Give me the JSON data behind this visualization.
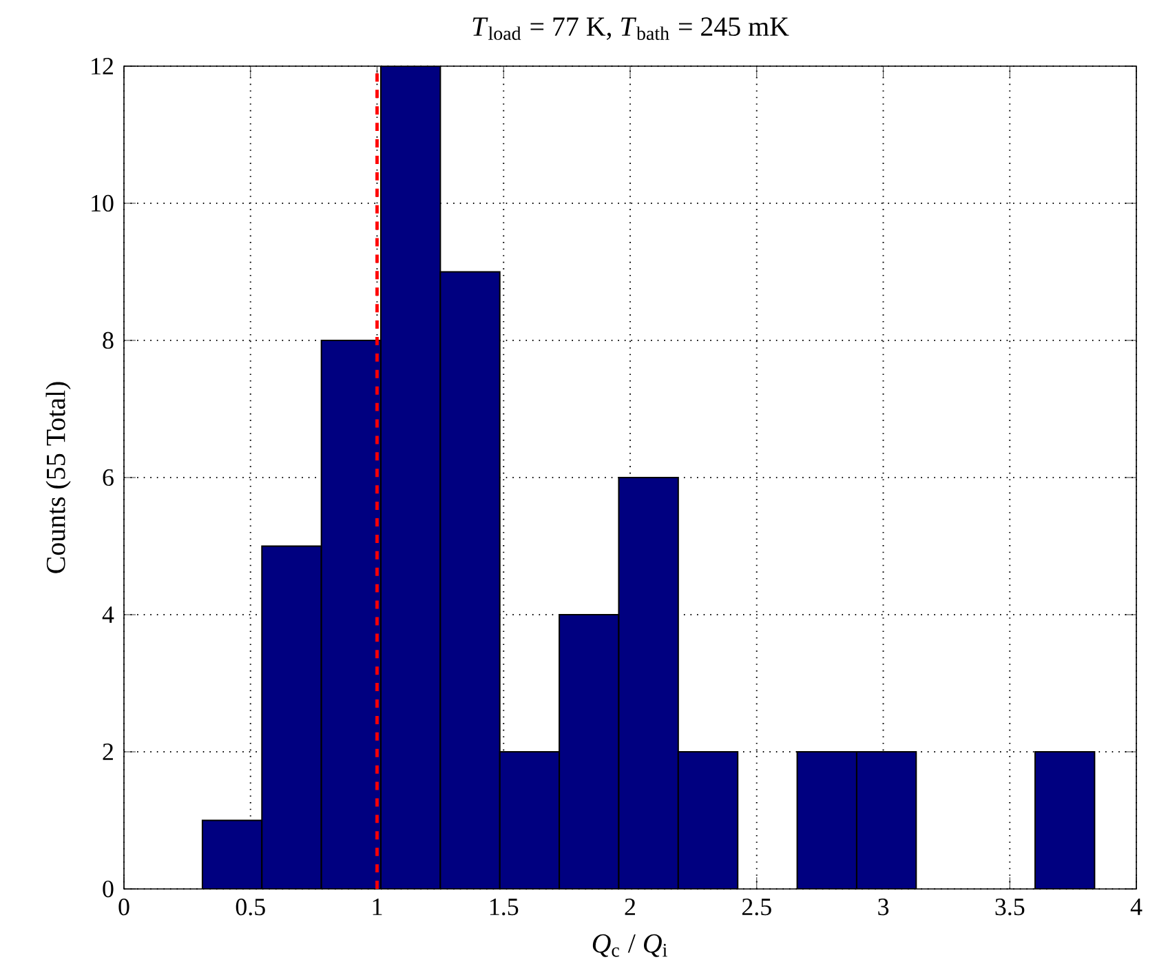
{
  "chart_data": {
    "type": "histogram",
    "title": "*T*$_{load}$ = 77 K, *T*$_{bath}$ = 245 mK",
    "xlabel": "*Q*$_{c}$ / *Q*$_{i}$",
    "ylabel": "Counts (55 Total)",
    "bins": [
      0.31,
      0.545,
      0.78,
      1.015,
      1.25,
      1.485,
      1.72,
      1.955,
      2.19,
      2.425,
      2.66,
      2.895,
      3.13,
      3.365,
      3.6,
      3.835
    ],
    "values": [
      1,
      5,
      8,
      12,
      9,
      2,
      4,
      6,
      2,
      0,
      2,
      2,
      0,
      0,
      2
    ],
    "color": "#000080",
    "xlim": [
      0,
      4
    ],
    "ylim": [
      0,
      12
    ],
    "xticks": [
      0,
      0.5,
      1,
      1.5,
      2,
      2.5,
      3,
      3.5,
      4
    ],
    "yticks": [
      0,
      2,
      4,
      6,
      8,
      10,
      12
    ],
    "grid": true,
    "ref_lines": [
      {
        "axis": "x",
        "value": 1,
        "color": "#ff0000",
        "line_style": "dashed"
      }
    ]
  }
}
